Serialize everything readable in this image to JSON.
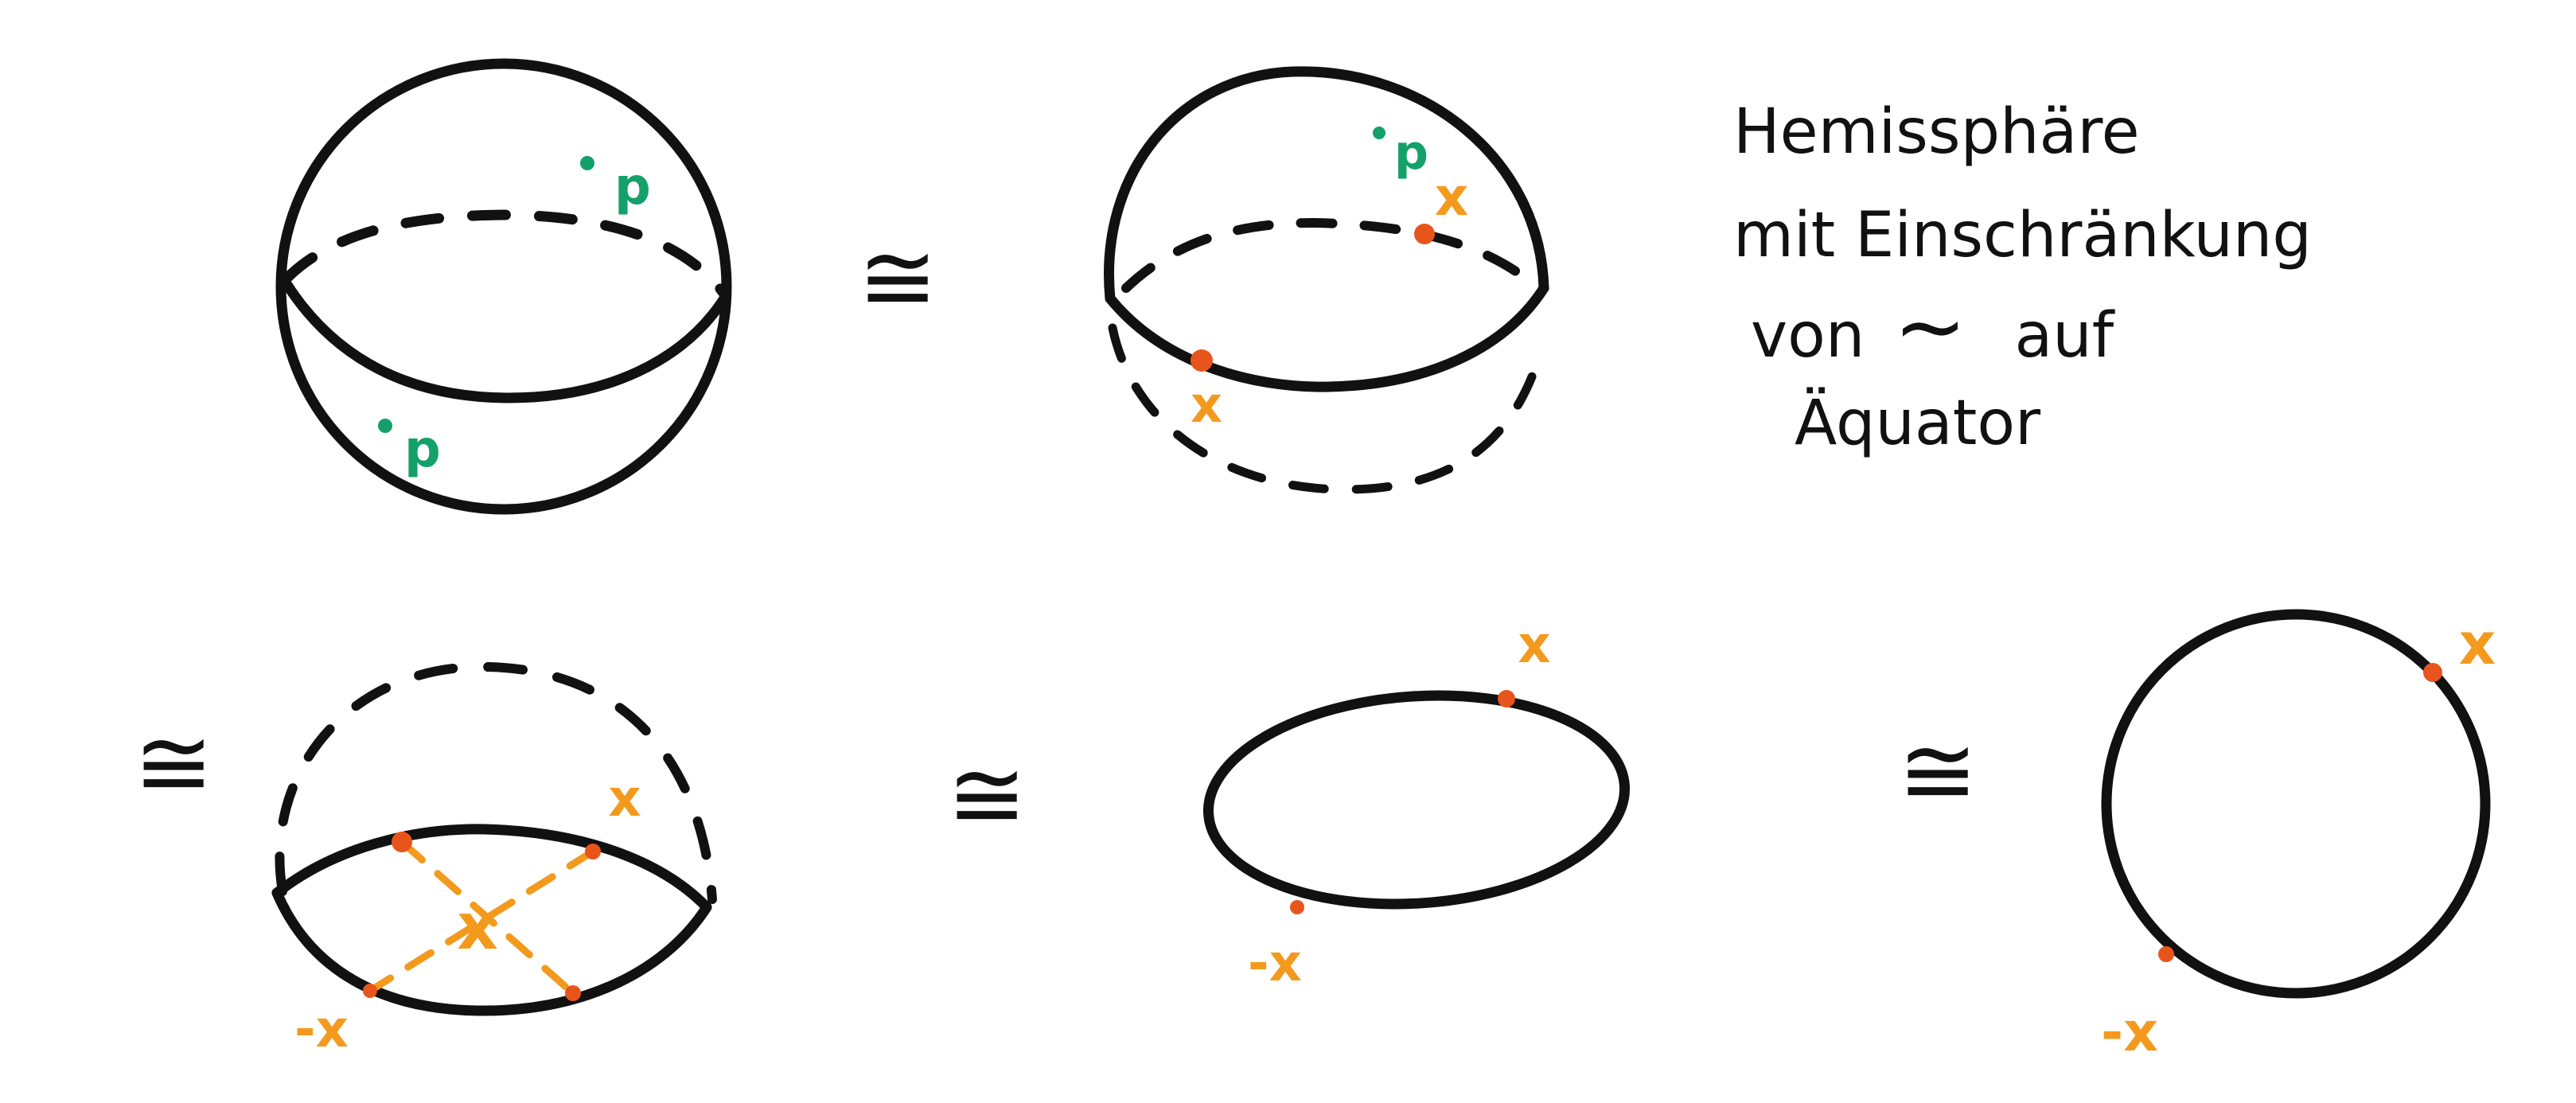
{
  "colors": {
    "ink": "#111111",
    "point_p": "#14a06a",
    "mark_x": "#f39a1e",
    "mark_dot": "#e8551c",
    "background": "#ffffff"
  },
  "symbols": {
    "congruent": "≅",
    "tilde": "∼"
  },
  "labels": {
    "p": "p",
    "x": "x",
    "minus_x": "-x"
  },
  "note": {
    "line1": "Hemissphäre",
    "line2": "mit Einschränkung",
    "line3_prefix": "von",
    "line3_symbol": "∼",
    "line3_suffix": "auf",
    "line4": "Äquator"
  }
}
